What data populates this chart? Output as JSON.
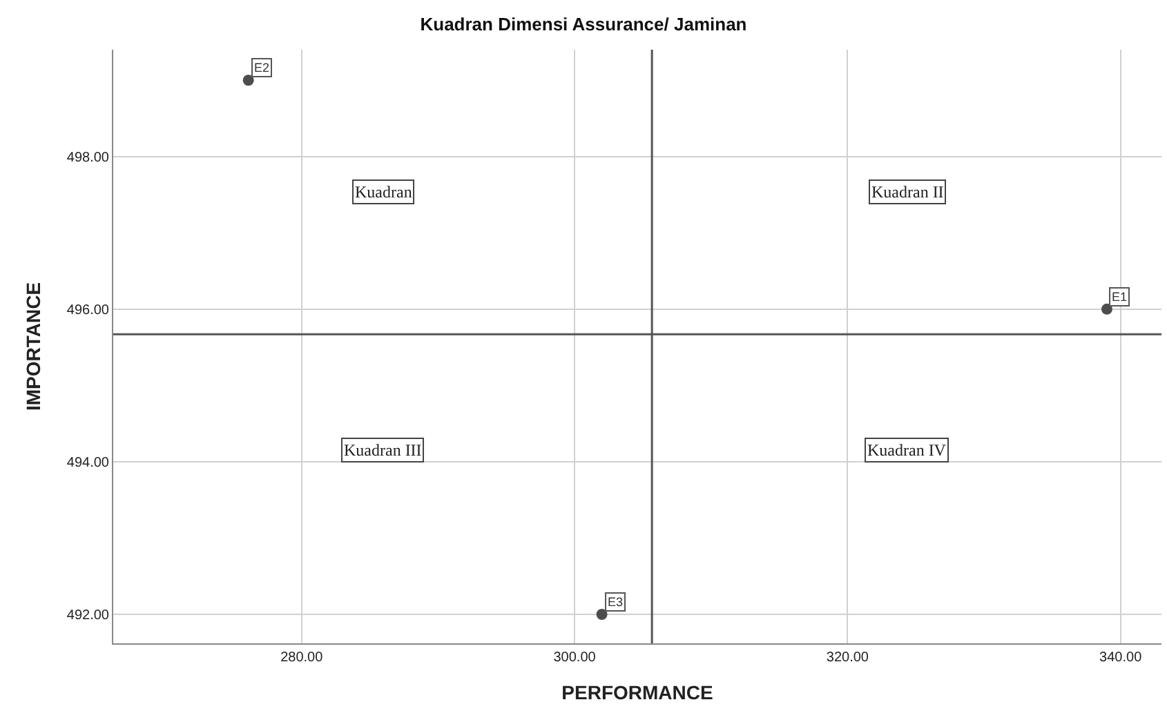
{
  "chart_data": {
    "type": "scatter",
    "title": "Kuadran Dimensi Assurance/ Jaminan",
    "xlabel": "PERFORMANCE",
    "ylabel": "IMPORTANCE",
    "x": [
      339,
      276.1,
      302
    ],
    "series": [
      {
        "color": "#4d4d4d",
        "values": [
          496,
          499,
          492
        ]
      }
    ],
    "xlim": [
      266.2,
      343
    ],
    "ylim": [
      491.62,
      499.4
    ],
    "xticks": [
      {
        "value": 280,
        "label": "280.00"
      },
      {
        "value": 300,
        "label": "300.00"
      },
      {
        "value": 320,
        "label": "320.00"
      },
      {
        "value": 340,
        "label": "340.00"
      }
    ],
    "yticks": [
      {
        "value": 492,
        "label": "492.00"
      },
      {
        "value": 494,
        "label": "494.00"
      },
      {
        "value": 496,
        "label": "496.00"
      },
      {
        "value": 498,
        "label": "498.00"
      }
    ],
    "grid": true,
    "marker": "circle",
    "ref_lines": [
      {
        "axis": "x",
        "value": 305.67,
        "label": null,
        "color": "#555555"
      },
      {
        "axis": "y",
        "value": 495.67,
        "label": null,
        "color": "#555555"
      }
    ],
    "annotations": [
      {
        "text": "E1",
        "x": 339,
        "y": 496
      },
      {
        "text": "E2",
        "x": 276.1,
        "y": 499
      },
      {
        "text": "E3",
        "x": 302,
        "y": 492
      },
      "Kuadran",
      "Kuadran II",
      "Kuadran III",
      "Kuadran IV"
    ]
  }
}
